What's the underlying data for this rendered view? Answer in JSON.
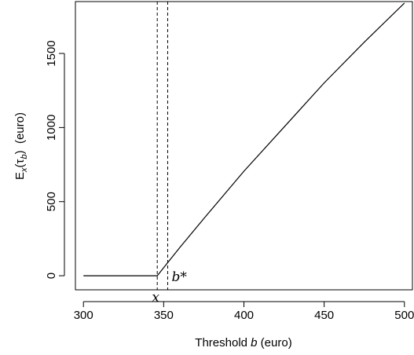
{
  "chart_data": {
    "type": "line",
    "xlabel": {
      "prefix": "Threshold ",
      "italic": "b",
      "suffix": " (euro)"
    },
    "ylabel": {
      "base": "E",
      "sub1": "x",
      "mid": "(τ",
      "sub2": "b",
      "close": ")",
      "unit": "  (euro)"
    },
    "xlim": [
      295,
      505
    ],
    "ylim": [
      -95,
      1850
    ],
    "x_ticks": [
      300,
      350,
      400,
      450,
      500
    ],
    "y_ticks": [
      0,
      500,
      1000,
      1500
    ],
    "grid": false,
    "series": [
      {
        "x": [
          300,
          320,
          346,
          350,
          360,
          375,
          400,
          425,
          450,
          475,
          500
        ],
        "y": [
          0,
          0,
          0,
          55,
          190,
          385,
          705,
          1003,
          1301,
          1576,
          1840
        ]
      }
    ],
    "vlines": [
      {
        "x": 346,
        "label": "x"
      },
      {
        "x": 352.5,
        "label": "b*"
      }
    ]
  }
}
